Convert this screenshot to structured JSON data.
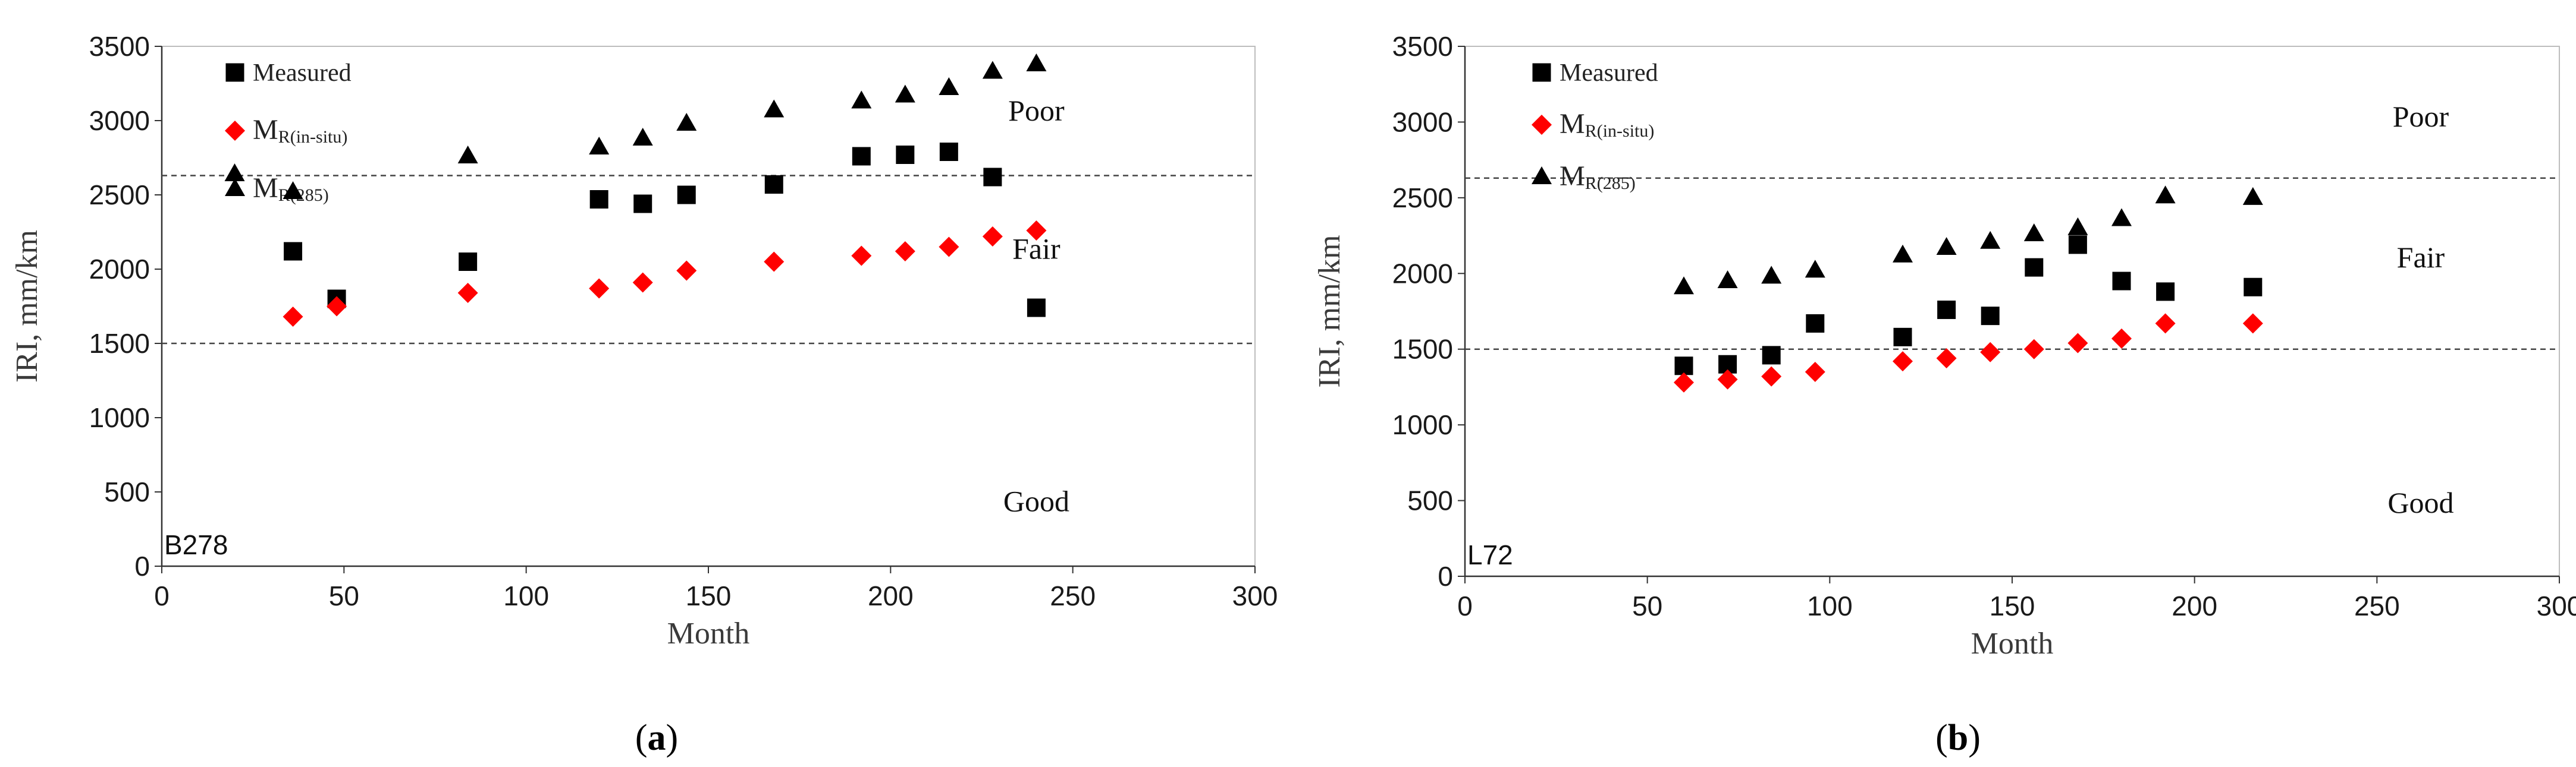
{
  "chart_data": [
    {
      "type": "scatter",
      "panel_label": "B278",
      "caption_open": "(",
      "caption_letter": "a",
      "caption_close": ")",
      "xlabel": "Month",
      "ylabel": "IRI, mm/km",
      "xlim": [
        0,
        300
      ],
      "ylim": [
        0,
        3500
      ],
      "xticks": [
        0,
        50,
        100,
        150,
        200,
        250,
        300
      ],
      "yticks": [
        0,
        500,
        1000,
        1500,
        2000,
        2500,
        3000,
        3500
      ],
      "thresholds": [
        1500,
        2630
      ],
      "zones": [
        {
          "label": "Poor",
          "x": 240,
          "y": 3000
        },
        {
          "label": "Fair",
          "x": 240,
          "y": 2070
        },
        {
          "label": "Good",
          "x": 240,
          "y": 370
        }
      ],
      "series": [
        {
          "name": "Measured",
          "name_main": "",
          "name_sub": "",
          "marker": "square",
          "color": "#000000",
          "points": [
            [
              36,
              2120
            ],
            [
              48,
              1800
            ],
            [
              84,
              2050
            ],
            [
              120,
              2470
            ],
            [
              132,
              2440
            ],
            [
              144,
              2500
            ],
            [
              168,
              2570
            ],
            [
              192,
              2760
            ],
            [
              204,
              2770
            ],
            [
              216,
              2790
            ],
            [
              228,
              2620
            ],
            [
              240,
              1740
            ]
          ]
        },
        {
          "name": "MR(in-situ)",
          "name_main": "M",
          "name_sub": "R(in-situ)",
          "marker": "diamond",
          "color": "#ff0000",
          "points": [
            [
              36,
              1680
            ],
            [
              48,
              1750
            ],
            [
              84,
              1840
            ],
            [
              120,
              1870
            ],
            [
              132,
              1910
            ],
            [
              144,
              1990
            ],
            [
              168,
              2050
            ],
            [
              192,
              2090
            ],
            [
              204,
              2120
            ],
            [
              216,
              2150
            ],
            [
              228,
              2220
            ],
            [
              240,
              2260
            ]
          ]
        },
        {
          "name": "MR(285)",
          "name_main": "M",
          "name_sub": "R(285)",
          "marker": "triangle",
          "color": "#000000",
          "points": [
            [
              20,
              2640
            ],
            [
              36,
              2520
            ],
            [
              84,
              2760
            ],
            [
              120,
              2820
            ],
            [
              132,
              2880
            ],
            [
              144,
              2980
            ],
            [
              168,
              3070
            ],
            [
              192,
              3130
            ],
            [
              204,
              3170
            ],
            [
              216,
              3220
            ],
            [
              228,
              3330
            ],
            [
              240,
              3380
            ]
          ]
        }
      ]
    },
    {
      "type": "scatter",
      "panel_label": "L72",
      "caption_open": "(",
      "caption_letter": "b",
      "caption_close": ")",
      "xlabel": "Month",
      "ylabel": "IRI, mm/km",
      "xlim": [
        0,
        300
      ],
      "ylim": [
        0,
        3500
      ],
      "xticks": [
        0,
        50,
        100,
        150,
        200,
        250,
        300
      ],
      "yticks": [
        0,
        500,
        1000,
        1500,
        2000,
        2500,
        3000,
        3500
      ],
      "thresholds": [
        1500,
        2630
      ],
      "zones": [
        {
          "label": "Poor",
          "x": 262,
          "y": 2970
        },
        {
          "label": "Fair",
          "x": 262,
          "y": 2040
        },
        {
          "label": "Good",
          "x": 262,
          "y": 420
        }
      ],
      "series": [
        {
          "name": "Measured",
          "name_main": "",
          "name_sub": "",
          "marker": "square",
          "color": "#000000",
          "points": [
            [
              60,
              1390
            ],
            [
              72,
              1400
            ],
            [
              84,
              1460
            ],
            [
              96,
              1670
            ],
            [
              120,
              1580
            ],
            [
              132,
              1760
            ],
            [
              144,
              1720
            ],
            [
              156,
              2040
            ],
            [
              168,
              2190
            ],
            [
              180,
              1950
            ],
            [
              192,
              1880
            ],
            [
              216,
              1910
            ]
          ]
        },
        {
          "name": "MR(in-situ)",
          "name_main": "M",
          "name_sub": "R(in-situ)",
          "marker": "diamond",
          "color": "#ff0000",
          "points": [
            [
              60,
              1280
            ],
            [
              72,
              1300
            ],
            [
              84,
              1320
            ],
            [
              96,
              1350
            ],
            [
              120,
              1420
            ],
            [
              132,
              1440
            ],
            [
              144,
              1480
            ],
            [
              156,
              1500
            ],
            [
              168,
              1540
            ],
            [
              180,
              1570
            ],
            [
              192,
              1670
            ],
            [
              216,
              1670
            ]
          ]
        },
        {
          "name": "MR(285)",
          "name_main": "M",
          "name_sub": "R(285)",
          "marker": "triangle",
          "color": "#000000",
          "points": [
            [
              60,
              1910
            ],
            [
              72,
              1950
            ],
            [
              84,
              1980
            ],
            [
              96,
              2020
            ],
            [
              120,
              2120
            ],
            [
              132,
              2170
            ],
            [
              144,
              2210
            ],
            [
              156,
              2260
            ],
            [
              168,
              2300
            ],
            [
              180,
              2360
            ],
            [
              192,
              2510
            ],
            [
              216,
              2500
            ]
          ]
        }
      ]
    }
  ]
}
